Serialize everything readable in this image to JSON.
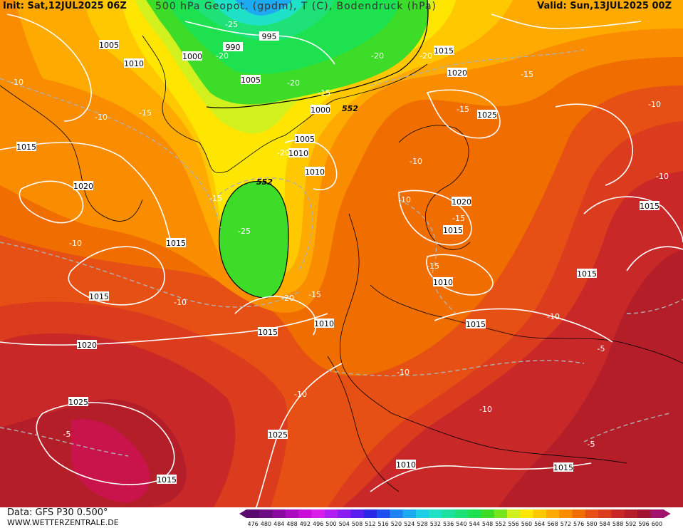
{
  "header": {
    "init": "Init: Sat,12JUL2025 06Z",
    "title": "500 hPa Geopot. (gpdm), T (C), Bodendruck (hPa)",
    "valid": "Valid: Sun,13JUL2025 00Z"
  },
  "footer": {
    "data_source": "Data: GFS P30 0.500°",
    "website": "WWW.WETTERZENTRALE.DE"
  },
  "legend": {
    "levels": [
      "476",
      "480",
      "484",
      "488",
      "492",
      "496",
      "500",
      "504",
      "508",
      "512",
      "516",
      "520",
      "524",
      "528",
      "532",
      "536",
      "540",
      "544",
      "548",
      "552",
      "556",
      "560",
      "564",
      "568",
      "572",
      "576",
      "580",
      "584",
      "588",
      "592",
      "596",
      "600"
    ],
    "colors": [
      "#5a0a6e",
      "#6e0c82",
      "#8a0aa0",
      "#a80cbe",
      "#c80fd8",
      "#d81ee8",
      "#b01ef0",
      "#8a1ef0",
      "#5a1ef0",
      "#2828e6",
      "#1e50f0",
      "#1e82f0",
      "#1eaaf0",
      "#1ecde6",
      "#1ee1c8",
      "#1ee1a0",
      "#1ee178",
      "#1ee150",
      "#3cdc28",
      "#78e61e",
      "#d2f01e",
      "#ffe600",
      "#ffc800",
      "#ffaa00",
      "#fa8c00",
      "#f06e00",
      "#e65014",
      "#dc3c1e",
      "#c82828",
      "#b41e28",
      "#a01432",
      "#a0146e"
    ]
  },
  "map": {
    "pressure_labels": [
      "1005",
      "1010",
      "995",
      "990",
      "1000",
      "1005",
      "1000",
      "1005",
      "1010",
      "1010",
      "1015",
      "1020",
      "1025",
      "1015",
      "1020",
      "1015",
      "1015",
      "1015",
      "1010",
      "1015",
      "1020",
      "1015",
      "1025",
      "1020",
      "1025",
      "1010",
      "1015",
      "1010",
      "1015",
      "1015",
      "1015"
    ],
    "temp_labels": [
      "-10",
      "-10",
      "-10",
      "-15",
      "-25",
      "-20",
      "-20",
      "-20",
      "-15",
      "-20",
      "-20",
      "-15",
      "-15",
      "-15",
      "-15",
      "-25",
      "-20",
      "-15",
      "-10",
      "-10",
      "-10",
      "-15",
      "-10",
      "-10",
      "-10",
      "-10",
      "-10",
      "-5",
      "-5",
      "-5",
      "-10"
    ],
    "geopot_labels": [
      "552",
      "552"
    ]
  }
}
